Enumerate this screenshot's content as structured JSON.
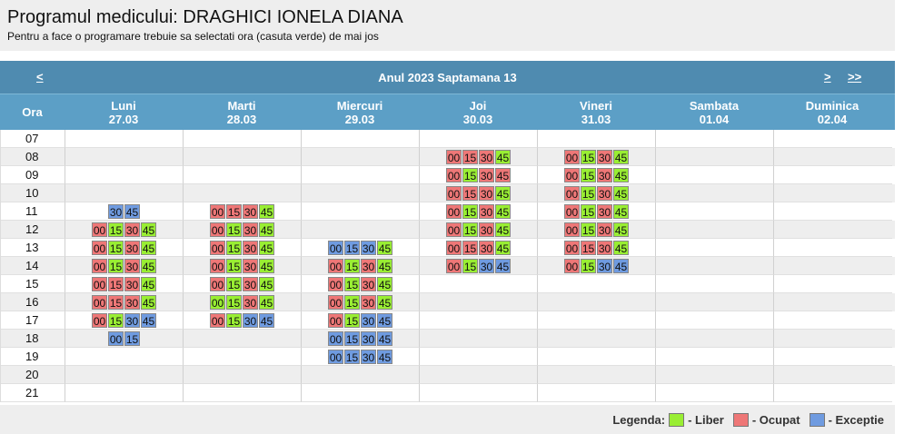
{
  "title": "Programul medicului: DRAGHICI IONELA DIANA",
  "subtitle": "Pentru a face o programare trebuie sa selectati ora (casuta verde) de mai jos",
  "nav": {
    "prev": "<",
    "week": "Anul 2023 Saptamana 13",
    "next": ">",
    "last": ">>"
  },
  "ora_label": "Ora",
  "days": [
    {
      "name": "Luni",
      "date": "27.03"
    },
    {
      "name": "Marti",
      "date": "28.03"
    },
    {
      "name": "Miercuri",
      "date": "29.03"
    },
    {
      "name": "Joi",
      "date": "30.03"
    },
    {
      "name": "Vineri",
      "date": "31.03"
    },
    {
      "name": "Sambata",
      "date": "01.04"
    },
    {
      "name": "Duminica",
      "date": "02.04"
    }
  ],
  "hours": [
    "07",
    "08",
    "09",
    "10",
    "11",
    "12",
    "13",
    "14",
    "15",
    "16",
    "17",
    "18",
    "19",
    "20",
    "21"
  ],
  "schedule": {
    "07": [
      "",
      "",
      "",
      "",
      "",
      "",
      ""
    ],
    "08": [
      "",
      "",
      "",
      "00O 15O 30O 45L",
      "00O 15L 30O 45L",
      "",
      ""
    ],
    "09": [
      "",
      "",
      "",
      "00O 15L 30O 45O",
      "00O 15L 30O 45L",
      "",
      ""
    ],
    "10": [
      "",
      "",
      "",
      "00O 15O 30O 45L",
      "00O 15L 30O 45L",
      "",
      ""
    ],
    "11": [
      "30E 45E",
      "00O 15O 30O 45L",
      "",
      "00O 15L 30O 45L",
      "00O 15L 30O 45L",
      "",
      ""
    ],
    "12": [
      "00O 15L 30O 45L",
      "00O 15L 30O 45L",
      "",
      "00O 15L 30O 45L",
      "00O 15L 30O 45L",
      "",
      ""
    ],
    "13": [
      "00O 15L 30O 45L",
      "00O 15L 30O 45L",
      "00E 15E 30E 45L",
      "00O 15O 30O 45L",
      "00O 15O 30O 45L",
      "",
      ""
    ],
    "14": [
      "00O 15L 30O 45L",
      "00O 15L 30O 45L",
      "00O 15L 30O 45L",
      "00O 15L 30E 45E",
      "00O 15L 30E 45E",
      "",
      ""
    ],
    "15": [
      "00O 15O 30O 45L",
      "00O 15L 30O 45L",
      "00O 15L 30O 45L",
      "",
      "",
      "",
      ""
    ],
    "16": [
      "00O 15O 30O 45L",
      "00L 15L 30O 45L",
      "00O 15L 30O 45L",
      "",
      "",
      "",
      ""
    ],
    "17": [
      "00O 15L 30E 45E",
      "00O 15L 30E 45E",
      "00O 15L 30E 45E",
      "",
      "",
      "",
      ""
    ],
    "18": [
      "00E 15E",
      "",
      "00E 15E 30E 45E",
      "",
      "",
      "",
      ""
    ],
    "19": [
      "",
      "",
      "00E 15E 30E 45E",
      "",
      "",
      "",
      ""
    ],
    "20": [
      "",
      "",
      "",
      "",
      "",
      "",
      ""
    ],
    "21": [
      "",
      "",
      "",
      "",
      "",
      "",
      ""
    ]
  },
  "legend": {
    "label": "Legenda:",
    "liber": "- Liber",
    "ocupat": "- Ocupat",
    "exceptie": "- Exceptie"
  },
  "colors": {
    "liber": "#99ee33",
    "ocupat": "#ee7777",
    "exceptie": "#6f9be0",
    "header": "#4f8bb0"
  }
}
